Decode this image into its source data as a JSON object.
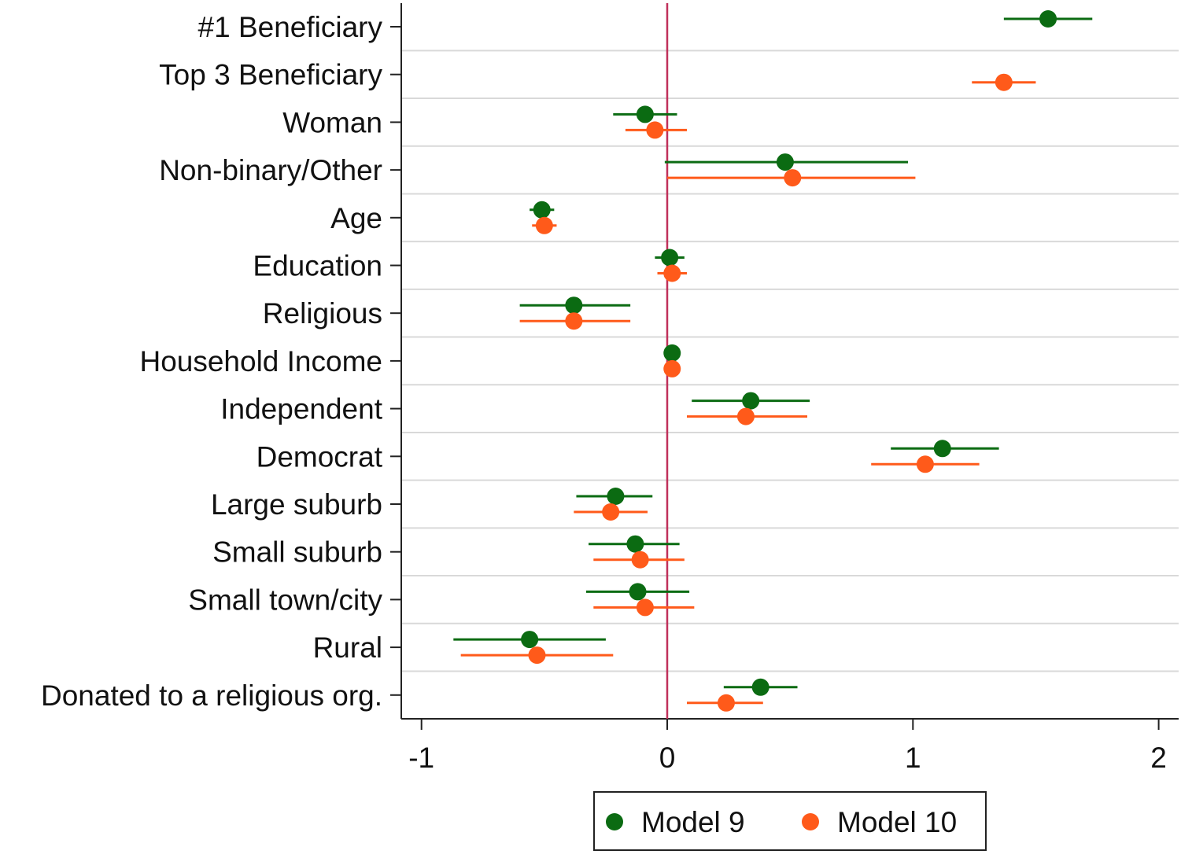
{
  "chart_data": {
    "type": "scatter",
    "subtype": "coefficient-plot",
    "title": "",
    "xlabel": "",
    "ylabel": "",
    "xlim": [
      -1.08,
      2.08
    ],
    "xticks": [
      -1,
      0,
      1,
      2
    ],
    "xtick_labels": [
      "-1",
      "0",
      "1",
      "2"
    ],
    "reference_line": 0,
    "reference_line_color": "#c0305a",
    "grid": true,
    "legend_position": "bottom",
    "categories": [
      "#1 Beneficiary",
      "Top 3 Beneficiary",
      "Woman",
      "Non-binary/Other",
      "Age",
      "Education",
      "Religious",
      "Household Income",
      "Independent",
      "Democrat",
      "Large suburb",
      "Small suburb",
      "Small town/city",
      "Rural",
      "Donated to a religious org."
    ],
    "series": [
      {
        "name": "Model 9",
        "color": "#0b6b12",
        "values": [
          1.55,
          null,
          -0.09,
          0.48,
          -0.51,
          0.01,
          -0.38,
          0.02,
          0.34,
          1.12,
          -0.21,
          -0.13,
          -0.12,
          -0.56,
          0.38
        ],
        "ci_low": [
          1.37,
          null,
          -0.22,
          -0.01,
          -0.56,
          -0.05,
          -0.6,
          0.01,
          0.1,
          0.91,
          -0.37,
          -0.32,
          -0.33,
          -0.87,
          0.23
        ],
        "ci_high": [
          1.73,
          null,
          0.04,
          0.98,
          -0.46,
          0.07,
          -0.15,
          0.03,
          0.58,
          1.35,
          -0.06,
          0.05,
          0.09,
          -0.25,
          0.53
        ]
      },
      {
        "name": "Model 10",
        "color": "#ff5a1a",
        "values": [
          null,
          1.37,
          -0.05,
          0.51,
          -0.5,
          0.02,
          -0.38,
          0.02,
          0.32,
          1.05,
          -0.23,
          -0.11,
          -0.09,
          -0.53,
          0.24
        ],
        "ci_low": [
          null,
          1.24,
          -0.17,
          0.0,
          -0.55,
          -0.04,
          -0.6,
          0.01,
          0.08,
          0.83,
          -0.38,
          -0.3,
          -0.3,
          -0.84,
          0.08
        ],
        "ci_high": [
          null,
          1.5,
          0.08,
          1.01,
          -0.45,
          0.08,
          -0.15,
          0.03,
          0.57,
          1.27,
          -0.08,
          0.07,
          0.11,
          -0.22,
          0.39
        ]
      }
    ]
  }
}
